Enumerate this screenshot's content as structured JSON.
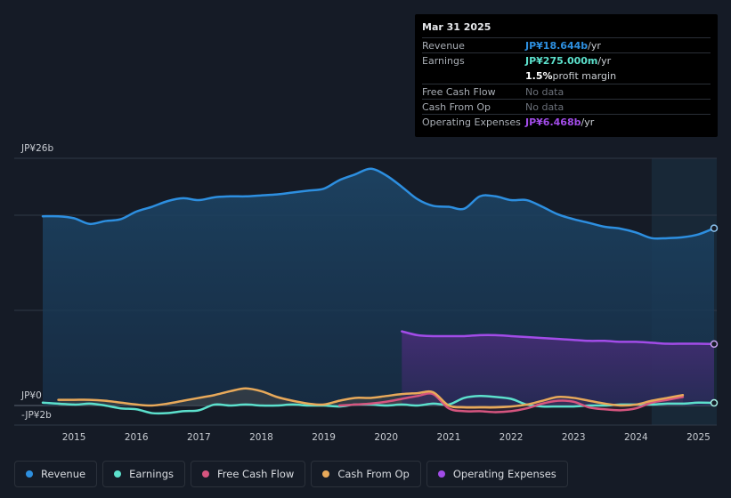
{
  "chart_data": {
    "type": "area",
    "title": "",
    "y_axis_top_label": "JP¥26b",
    "y_axis_zero_label": "JP¥0",
    "y_axis_bottom_label": "-JP¥2b",
    "ylim": [
      -2,
      26
    ],
    "xlim": [
      2014.45,
      2025.25
    ],
    "x_ticks": [
      "2015",
      "2016",
      "2017",
      "2018",
      "2019",
      "2020",
      "2021",
      "2022",
      "2023",
      "2024",
      "2025"
    ],
    "forecast_start": 2024.25,
    "series": [
      {
        "name": "Revenue",
        "key": "revenue",
        "color": "#2d8fe0",
        "x": [
          2014.5,
          2014.75,
          2015.0,
          2015.25,
          2015.5,
          2015.75,
          2016.0,
          2016.25,
          2016.5,
          2016.75,
          2017.0,
          2017.25,
          2017.5,
          2017.75,
          2018.0,
          2018.25,
          2018.5,
          2018.75,
          2019.0,
          2019.25,
          2019.5,
          2019.75,
          2020.0,
          2020.25,
          2020.5,
          2020.75,
          2021.0,
          2021.25,
          2021.5,
          2021.75,
          2022.0,
          2022.25,
          2022.5,
          2022.75,
          2023.0,
          2023.25,
          2023.5,
          2023.75,
          2024.0,
          2024.25,
          2024.5,
          2024.75,
          2025.0,
          2025.25
        ],
        "values": [
          19.9,
          19.9,
          19.7,
          19.1,
          19.4,
          19.6,
          20.4,
          20.9,
          21.5,
          21.8,
          21.6,
          21.9,
          22.0,
          22.0,
          22.1,
          22.2,
          22.4,
          22.6,
          22.8,
          23.7,
          24.3,
          24.9,
          24.2,
          23.0,
          21.7,
          21.0,
          20.9,
          20.7,
          22.0,
          22.0,
          21.6,
          21.6,
          20.9,
          20.1,
          19.6,
          19.2,
          18.8,
          18.6,
          18.2,
          17.6,
          17.6,
          17.7,
          18.0,
          18.644
        ]
      },
      {
        "name": "Earnings",
        "key": "earnings",
        "color": "#5ce0cc",
        "x": [
          2014.5,
          2015.0,
          2015.25,
          2015.5,
          2015.75,
          2016.0,
          2016.25,
          2016.5,
          2016.75,
          2017.0,
          2017.25,
          2017.5,
          2017.75,
          2018.0,
          2018.25,
          2018.5,
          2018.75,
          2019.0,
          2019.25,
          2019.5,
          2019.75,
          2020.0,
          2020.25,
          2020.5,
          2020.75,
          2021.0,
          2021.25,
          2021.5,
          2021.75,
          2022.0,
          2022.25,
          2022.5,
          2022.75,
          2023.0,
          2023.25,
          2023.5,
          2023.75,
          2024.0,
          2024.25,
          2024.5,
          2024.75,
          2025.0,
          2025.25
        ],
        "values": [
          0.3,
          0.1,
          0.2,
          0.0,
          -0.3,
          -0.4,
          -0.8,
          -0.8,
          -0.6,
          -0.5,
          0.1,
          0.0,
          0.1,
          0.0,
          0.0,
          0.1,
          0.0,
          0.0,
          -0.1,
          0.1,
          0.1,
          0.0,
          0.1,
          0.0,
          0.2,
          0.1,
          0.8,
          1.0,
          0.9,
          0.7,
          0.1,
          -0.1,
          -0.1,
          -0.1,
          0.0,
          0.0,
          0.1,
          0.1,
          0.1,
          0.2,
          0.2,
          0.3,
          0.275
        ]
      },
      {
        "name": "Free Cash Flow",
        "key": "fcf",
        "color": "#d6557f",
        "x": [
          2019.25,
          2019.5,
          2019.75,
          2020.0,
          2020.25,
          2020.5,
          2020.75,
          2021.0,
          2021.25,
          2021.5,
          2021.75,
          2022.0,
          2022.25,
          2022.5,
          2022.75,
          2023.0,
          2023.25,
          2023.5,
          2023.75,
          2024.0,
          2024.25,
          2024.5,
          2024.75
        ],
        "values": [
          0.0,
          0.1,
          0.2,
          0.4,
          0.7,
          1.0,
          1.2,
          -0.3,
          -0.6,
          -0.6,
          -0.7,
          -0.6,
          -0.3,
          0.2,
          0.5,
          0.4,
          -0.2,
          -0.4,
          -0.5,
          -0.3,
          0.3,
          0.6,
          0.9
        ]
      },
      {
        "name": "Cash From Op",
        "key": "cfo",
        "color": "#e8a95a",
        "x": [
          2014.75,
          2015.0,
          2015.25,
          2015.5,
          2015.75,
          2016.0,
          2016.25,
          2016.5,
          2016.75,
          2017.0,
          2017.25,
          2017.5,
          2017.75,
          2018.0,
          2018.25,
          2018.5,
          2018.75,
          2019.0,
          2019.25,
          2019.5,
          2019.75,
          2020.0,
          2020.25,
          2020.5,
          2020.75,
          2021.0,
          2021.25,
          2021.5,
          2021.75,
          2022.0,
          2022.25,
          2022.5,
          2022.75,
          2023.0,
          2023.25,
          2023.5,
          2023.75,
          2024.0,
          2024.25,
          2024.5,
          2024.75
        ],
        "values": [
          0.6,
          0.6,
          0.6,
          0.5,
          0.3,
          0.1,
          0.0,
          0.2,
          0.5,
          0.8,
          1.1,
          1.5,
          1.8,
          1.5,
          0.9,
          0.5,
          0.2,
          0.1,
          0.5,
          0.8,
          0.8,
          1.0,
          1.2,
          1.3,
          1.4,
          0.0,
          -0.2,
          -0.2,
          -0.2,
          -0.1,
          0.1,
          0.5,
          0.9,
          0.8,
          0.5,
          0.2,
          0.0,
          0.1,
          0.5,
          0.8,
          1.1
        ]
      },
      {
        "name": "Operating Expenses",
        "key": "opex",
        "color": "#a24ce8",
        "x": [
          2020.25,
          2020.5,
          2020.75,
          2021.0,
          2021.25,
          2021.5,
          2021.75,
          2022.0,
          2022.25,
          2022.5,
          2022.75,
          2023.0,
          2023.25,
          2023.5,
          2023.75,
          2024.0,
          2024.25,
          2024.5,
          2024.75,
          2025.0,
          2025.25
        ],
        "values": [
          7.8,
          7.4,
          7.3,
          7.3,
          7.3,
          7.4,
          7.4,
          7.3,
          7.2,
          7.1,
          7.0,
          6.9,
          6.8,
          6.8,
          6.7,
          6.7,
          6.6,
          6.5,
          6.5,
          6.5,
          6.468
        ]
      }
    ]
  },
  "tooltip": {
    "date": "Mar 31 2025",
    "rows": [
      {
        "label": "Revenue",
        "value": "JP¥18.644b",
        "unit": " /yr",
        "color": "#2d8fe0"
      },
      {
        "label": "Earnings",
        "value": "JP¥275.000m",
        "unit": " /yr",
        "color": "#5ce0cc"
      },
      {
        "label": "",
        "value": "1.5%",
        "unit": " profit margin",
        "color": "#ffffff"
      },
      {
        "label": "Free Cash Flow",
        "nodata": "No data"
      },
      {
        "label": "Cash From Op",
        "nodata": "No data"
      },
      {
        "label": "Operating Expenses",
        "value": "JP¥6.468b",
        "unit": " /yr",
        "color": "#a24ce8"
      }
    ]
  },
  "legend": [
    {
      "label": "Revenue",
      "color": "#2d8fe0"
    },
    {
      "label": "Earnings",
      "color": "#5ce0cc"
    },
    {
      "label": "Free Cash Flow",
      "color": "#d6557f"
    },
    {
      "label": "Cash From Op",
      "color": "#e8a95a"
    },
    {
      "label": "Operating Expenses",
      "color": "#a24ce8"
    }
  ]
}
